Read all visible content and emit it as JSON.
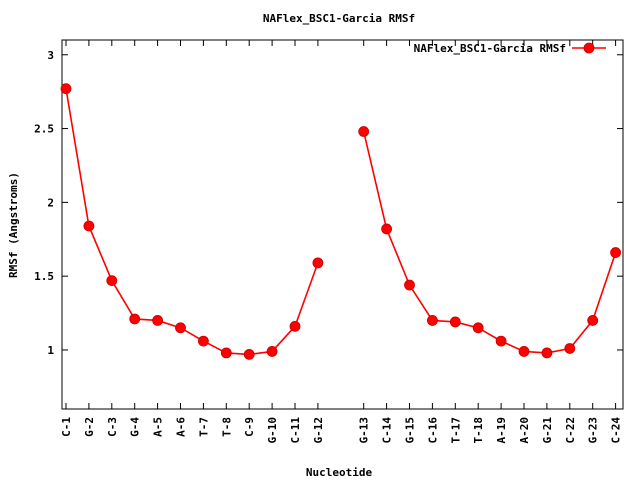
{
  "chart_data": {
    "type": "line",
    "title": "NAFlex_BSC1-Garcia RMSf",
    "xlabel": "Nucleotide",
    "ylabel": "RMSf (Angstroms)",
    "ylim": [
      0.6,
      3.1
    ],
    "yticks": [
      1,
      1.5,
      2,
      2.5,
      3
    ],
    "ytick_labels": [
      "1",
      "1.5",
      "2",
      "2.5",
      "3"
    ],
    "grid": false,
    "legend_position": "top-right",
    "series": [
      {
        "name": "NAFlex_BSC1-Garcia RMSf",
        "color": "#ff0000",
        "marker": "circle",
        "segments": [
          {
            "categories": [
              "C-1",
              "G-2",
              "C-3",
              "G-4",
              "A-5",
              "A-6",
              "T-7",
              "T-8",
              "C-9",
              "G-10",
              "C-11",
              "G-12"
            ],
            "values": [
              2.77,
              1.84,
              1.47,
              1.21,
              1.2,
              1.15,
              1.06,
              0.98,
              0.97,
              0.99,
              1.16,
              1.59
            ]
          },
          {
            "categories": [
              "G-13",
              "C-14",
              "G-15",
              "C-16",
              "T-17",
              "T-18",
              "A-19",
              "A-20",
              "G-21",
              "C-22",
              "G-23",
              "C-24"
            ],
            "values": [
              2.48,
              1.82,
              1.44,
              1.2,
              1.19,
              1.15,
              1.06,
              0.99,
              0.98,
              1.01,
              1.2,
              1.66
            ]
          }
        ]
      }
    ]
  }
}
